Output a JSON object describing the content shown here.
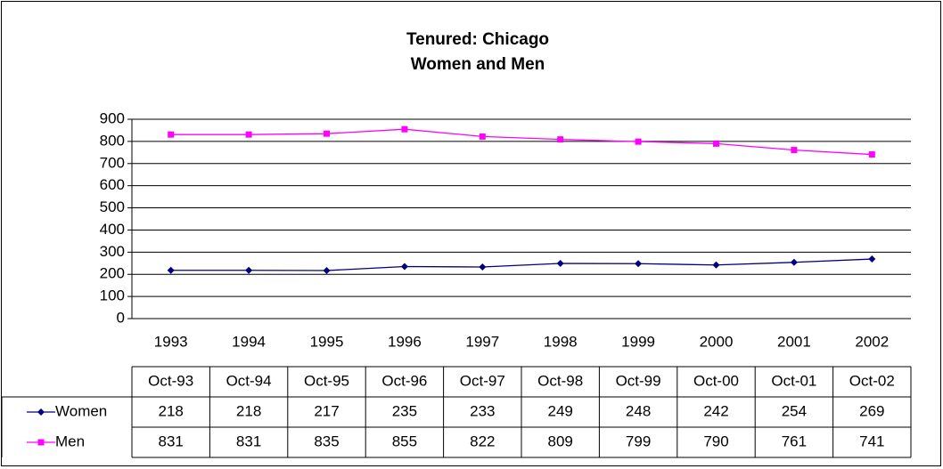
{
  "chart_data": {
    "type": "line",
    "title": [
      "Tenured: Chicago",
      "Women and Men"
    ],
    "categories": [
      "1993",
      "1994",
      "1995",
      "1996",
      "1997",
      "1998",
      "1999",
      "2000",
      "2001",
      "2002"
    ],
    "table_columns": [
      "Oct-93",
      "Oct-94",
      "Oct-95",
      "Oct-96",
      "Oct-97",
      "Oct-98",
      "Oct-99",
      "Oct-00",
      "Oct-01",
      "Oct-02"
    ],
    "series": [
      {
        "name": "Women",
        "color": "#000080",
        "marker": "diamond",
        "values": [
          218,
          218,
          217,
          235,
          233,
          249,
          248,
          242,
          254,
          269
        ]
      },
      {
        "name": "Men",
        "color": "#ff00ff",
        "marker": "square",
        "values": [
          831,
          831,
          835,
          855,
          822,
          809,
          799,
          790,
          761,
          741
        ]
      }
    ],
    "ylim": [
      0,
      900
    ],
    "yticks": [
      0,
      100,
      200,
      300,
      400,
      500,
      600,
      700,
      800,
      900
    ],
    "grid": true
  }
}
